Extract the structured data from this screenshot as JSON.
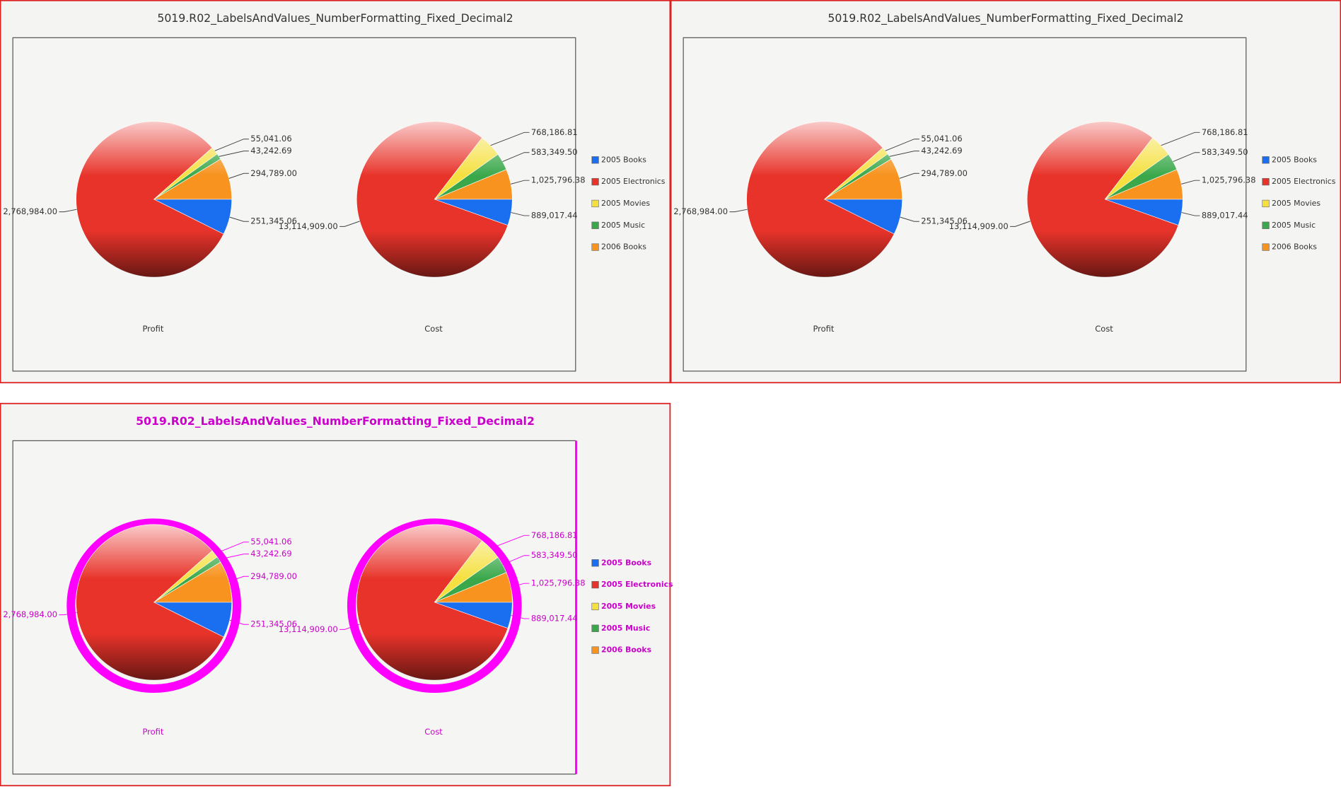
{
  "chart_data": [
    {
      "type": "pie",
      "title": "5019.R02_LabelsAndValues_NumberFormatting_Fixed_Decimal2",
      "categories": [
        "2005 Books",
        "2005 Electronics",
        "2005 Movies",
        "2005 Music",
        "2006 Books"
      ],
      "colors": [
        "#1a6ef0",
        "#e8332a",
        "#f5e040",
        "#3aa84a",
        "#f7931e"
      ],
      "text_color": "#333333",
      "border_color": "#dd2222",
      "series": [
        {
          "name": "Profit",
          "values": [
            251345.06,
            2768984.0,
            55041.06,
            43242.69,
            294789.0
          ],
          "value_labels": [
            "251,345.06",
            "2,768,984.00",
            "55,041.06",
            "43,242.69",
            "294,789.00"
          ]
        },
        {
          "name": "Cost",
          "values": [
            889017.44,
            13114909.0,
            768186.81,
            583349.5,
            1025796.38
          ],
          "value_labels": [
            "889,017.44",
            "13,114,909.00",
            "768,186.81",
            "583,349.50",
            "1,025,796.38"
          ]
        }
      ]
    },
    {
      "type": "pie",
      "title": "5019.R02_LabelsAndValues_NumberFormatting_Fixed_Decimal2",
      "categories": [
        "2005 Books",
        "2005 Electronics",
        "2005 Movies",
        "2005 Music",
        "2006 Books"
      ],
      "colors": [
        "#1a6ef0",
        "#e8332a",
        "#f5e040",
        "#3aa84a",
        "#f7931e"
      ],
      "text_color": "#333333",
      "border_color": "#dd2222",
      "series": [
        {
          "name": "Profit",
          "values": [
            251345.06,
            2768984.0,
            55041.06,
            43242.69,
            294789.0
          ],
          "value_labels": [
            "251,345.06",
            "2,768,984.00",
            "55,041.06",
            "43,242.69",
            "294,789.00"
          ]
        },
        {
          "name": "Cost",
          "values": [
            889017.44,
            13114909.0,
            768186.81,
            583349.5,
            1025796.38
          ],
          "value_labels": [
            "889,017.44",
            "13,114,909.00",
            "768,186.81",
            "583,349.50",
            "1,025,796.38"
          ]
        }
      ]
    },
    {
      "type": "pie",
      "title": "5019.R02_LabelsAndValues_NumberFormatting_Fixed_Decimal2",
      "categories": [
        "2005 Books",
        "2005 Electronics",
        "2005 Movies",
        "2005 Music",
        "2006 Books"
      ],
      "colors": [
        "#1a6ef0",
        "#e8332a",
        "#f5e040",
        "#3aa84a",
        "#f7931e"
      ],
      "text_color": "#cc00cc",
      "border_color": "#dd2222",
      "highlight_color": "#ff00ff",
      "series": [
        {
          "name": "Profit",
          "values": [
            251345.06,
            2768984.0,
            55041.06,
            43242.69,
            294789.0
          ],
          "value_labels": [
            "251,345.06",
            "2,768,984.00",
            "55,041.06",
            "43,242.69",
            "294,789.00"
          ]
        },
        {
          "name": "Cost",
          "values": [
            889017.44,
            13114909.0,
            768186.81,
            583349.5,
            1025796.38
          ],
          "value_labels": [
            "889,017.44",
            "13,114,909.00",
            "768,186.81",
            "583,349.50",
            "1,025,796.38"
          ]
        }
      ]
    }
  ]
}
